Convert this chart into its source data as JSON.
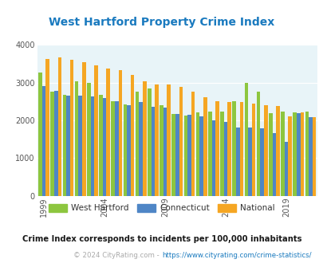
{
  "title": "West Hartford Property Crime Index",
  "title_color": "#1a7abf",
  "years": [
    1999,
    2000,
    2001,
    2002,
    2003,
    2004,
    2005,
    2006,
    2007,
    2008,
    2009,
    2010,
    2011,
    2012,
    2013,
    2014,
    2015,
    2016,
    2017,
    2018,
    2019,
    2020,
    2021
  ],
  "west_hartford": [
    3270,
    2760,
    2680,
    3040,
    3000,
    2680,
    2510,
    2420,
    2750,
    2850,
    2390,
    2170,
    2130,
    2200,
    2230,
    2230,
    2510,
    2990,
    2750,
    2180,
    2230,
    2220,
    2230
  ],
  "connecticut": [
    2910,
    2770,
    2660,
    2650,
    2640,
    2590,
    2500,
    2400,
    2490,
    2350,
    2340,
    2170,
    2150,
    2110,
    2000,
    1960,
    1810,
    1800,
    1780,
    1660,
    1420,
    2190,
    2090
  ],
  "national": [
    3620,
    3660,
    3610,
    3530,
    3460,
    3380,
    3330,
    3200,
    3040,
    2950,
    2940,
    2880,
    2750,
    2620,
    2510,
    2490,
    2480,
    2450,
    2400,
    2370,
    2100,
    2210,
    2090
  ],
  "wh_color": "#8dc63f",
  "ct_color": "#4f86c6",
  "nat_color": "#f5a623",
  "bg_color": "#e8f4f8",
  "ylim": [
    0,
    4000
  ],
  "yticks": [
    0,
    1000,
    2000,
    3000,
    4000
  ],
  "xtick_years": [
    1999,
    2004,
    2009,
    2014,
    2019
  ],
  "legend_labels": [
    "West Hartford",
    "Connecticut",
    "National"
  ],
  "footnote1": "Crime Index corresponds to incidents per 100,000 inhabitants",
  "footnote1_color": "#1a1a1a",
  "footnote2_prefix": "© 2024 CityRating.com - ",
  "footnote2_url": "https://www.cityrating.com/crime-statistics/",
  "footnote2_color": "#aaaaaa",
  "url_color": "#1a7abf"
}
